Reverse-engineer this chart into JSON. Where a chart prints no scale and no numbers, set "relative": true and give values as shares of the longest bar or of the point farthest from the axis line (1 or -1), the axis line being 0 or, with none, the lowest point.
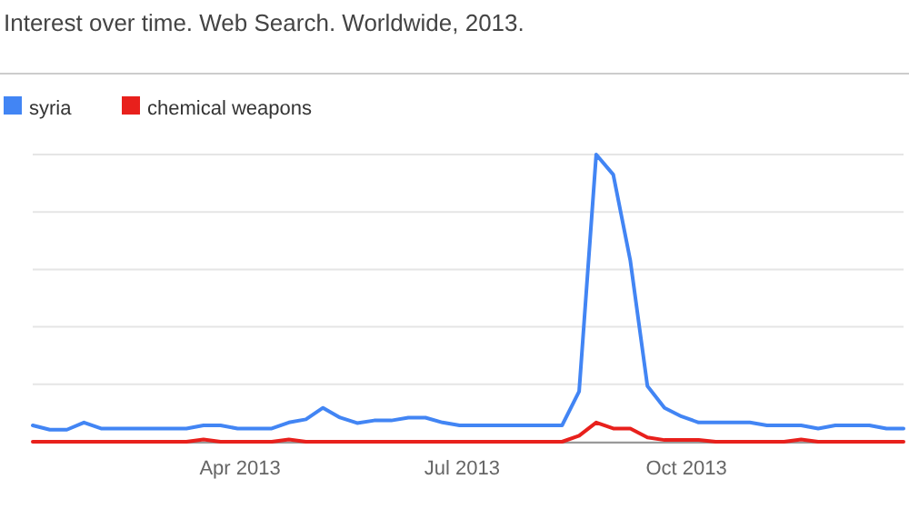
{
  "chart_data": {
    "type": "line",
    "title": "Interest over time. Web Search. Worldwide, 2013.",
    "relative": true,
    "grid": "y",
    "legend": "top left",
    "marker": "none",
    "line_style": "solid",
    "x": [
      "2013-01-06",
      "2013-01-13",
      "2013-01-20",
      "2013-01-27",
      "2013-02-03",
      "2013-02-10",
      "2013-02-17",
      "2013-02-24",
      "2013-03-03",
      "2013-03-10",
      "2013-03-17",
      "2013-03-24",
      "2013-03-31",
      "2013-04-07",
      "2013-04-14",
      "2013-04-21",
      "2013-04-28",
      "2013-05-05",
      "2013-05-12",
      "2013-05-19",
      "2013-05-26",
      "2013-06-02",
      "2013-06-09",
      "2013-06-16",
      "2013-06-23",
      "2013-06-30",
      "2013-07-07",
      "2013-07-14",
      "2013-07-21",
      "2013-07-28",
      "2013-08-04",
      "2013-08-11",
      "2013-08-18",
      "2013-08-25",
      "2013-09-01",
      "2013-09-08",
      "2013-09-15",
      "2013-09-22",
      "2013-09-29",
      "2013-10-06",
      "2013-10-13",
      "2013-10-20",
      "2013-10-27",
      "2013-11-03",
      "2013-11-10",
      "2013-11-17",
      "2013-11-24",
      "2013-12-01",
      "2013-12-08",
      "2013-12-15",
      "2013-12-22",
      "2013-12-29"
    ],
    "xlim": [
      "2013-01-06",
      "2013-12-29"
    ],
    "xticks": [
      {
        "value": "2013-04-01",
        "label": "Apr 2013"
      },
      {
        "value": "2013-07-01",
        "label": "Jul 2013"
      },
      {
        "value": "2013-10-01",
        "label": "Oct 2013"
      }
    ],
    "series": [
      {
        "name": "syria",
        "color": "#4285f4",
        "values": [
          0.057,
          0.042,
          0.042,
          0.067,
          0.046,
          0.046,
          0.046,
          0.046,
          0.046,
          0.046,
          0.057,
          0.057,
          0.046,
          0.046,
          0.046,
          0.067,
          0.078,
          0.118,
          0.084,
          0.065,
          0.074,
          0.074,
          0.084,
          0.084,
          0.067,
          0.057,
          0.057,
          0.057,
          0.057,
          0.057,
          0.057,
          0.057,
          0.175,
          1,
          0.93,
          0.63,
          0.194,
          0.118,
          0.088,
          0.067,
          0.067,
          0.067,
          0.067,
          0.057,
          0.057,
          0.057,
          0.046,
          0.057,
          0.057,
          0.057,
          0.046,
          0.046
        ]
      },
      {
        "name": "chemical weapons",
        "color": "#e8201c",
        "values": [
          0,
          0,
          0,
          0,
          0,
          0,
          0,
          0,
          0,
          0,
          0.008,
          0,
          0,
          0,
          0,
          0.008,
          0,
          0,
          0,
          0,
          0,
          0,
          0,
          0,
          0,
          0,
          0,
          0,
          0,
          0,
          0,
          0,
          0.021,
          0.067,
          0.046,
          0.046,
          0.015,
          0.006,
          0.006,
          0.006,
          0,
          0,
          0,
          0,
          0,
          0.008,
          0,
          0,
          0,
          0,
          0,
          0
        ]
      }
    ]
  }
}
